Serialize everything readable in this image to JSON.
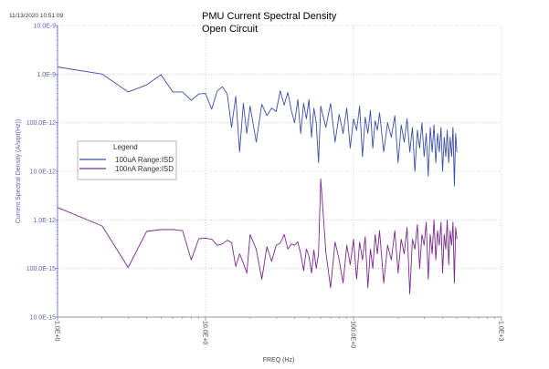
{
  "timestamp": "11/13/2020 10:51:09",
  "chart_data": {
    "type": "line",
    "title": "PMU Current Spectral Density",
    "subtitle": "Open Circuit",
    "xlabel": "FREQ (Hz)",
    "ylabel": "Current Spectral Density (A/sqrt(Hz))",
    "x_scale": "log",
    "y_scale": "log",
    "xlim": [
      1,
      1000
    ],
    "ylim": [
      1e-14,
      1e-08
    ],
    "grid": true,
    "legend_title": "Legend",
    "legend_position": "left-middle",
    "x_ticks": [
      "1.0E+0",
      "10.0E+0",
      "100.0E+0",
      "1.0E+3"
    ],
    "y_ticks": [
      "10.0E-9",
      "1.0E-9",
      "100.0E-12",
      "10.0E-12",
      "1.0E-12",
      "100.0E-15",
      "10.0E-15"
    ],
    "x": [
      1,
      2,
      3,
      4,
      5,
      6,
      7,
      8,
      9,
      10,
      11,
      12,
      13,
      14,
      15,
      16,
      17,
      18,
      19,
      20,
      22,
      24,
      26,
      28,
      30,
      32,
      34,
      36,
      38,
      40,
      42,
      44,
      46,
      48,
      50,
      52,
      54,
      56,
      58,
      60,
      65,
      70,
      75,
      80,
      85,
      90,
      95,
      100,
      105,
      110,
      115,
      120,
      125,
      130,
      135,
      140,
      145,
      150,
      160,
      170,
      180,
      190,
      200,
      210,
      220,
      230,
      240,
      250,
      260,
      270,
      280,
      290,
      300,
      310,
      320,
      330,
      340,
      350,
      360,
      370,
      380,
      390,
      400,
      410,
      420,
      430,
      440,
      450,
      460,
      470,
      480,
      490,
      500
    ],
    "series": [
      {
        "name": "100uA Range:ISD",
        "color": "#3a4fa8",
        "values": [
          1.4e-09,
          1e-09,
          4.3e-10,
          6e-10,
          9.7e-10,
          4.3e-10,
          4.3e-10,
          2.9e-10,
          3.9e-10,
          4e-10,
          1.9e-10,
          4.5e-10,
          5.5e-10,
          3.9e-10,
          8e-11,
          3.5e-10,
          2.5e-11,
          2.5e-10,
          6e-11,
          2.2e-10,
          4e-11,
          2.4e-10,
          1.4e-10,
          2e-10,
          1.7e-10,
          4.5e-10,
          2.3e-10,
          4.2e-10,
          1.8e-10,
          1e-10,
          3e-10,
          6e-11,
          2.5e-10,
          1.2e-10,
          3e-10,
          5e-11,
          2e-10,
          1e-10,
          1.5e-11,
          2.2e-10,
          8e-11,
          2.5e-10,
          4e-11,
          1.5e-10,
          6e-11,
          2e-10,
          3e-11,
          1.2e-10,
          7e-11,
          2.2e-10,
          2e-11,
          1.3e-10,
          6e-11,
          1.8e-10,
          3e-11,
          1.1e-10,
          7e-11,
          1.6e-10,
          2.5e-11,
          1e-10,
          5e-11,
          1.4e-10,
          1.5e-11,
          9e-11,
          4e-11,
          1.2e-10,
          2.5e-11,
          8e-11,
          1e-11,
          7e-11,
          3e-11,
          1e-10,
          2e-11,
          6e-11,
          8e-12,
          8e-11,
          2.5e-11,
          9e-11,
          1.5e-11,
          6e-11,
          2.5e-11,
          8e-11,
          1e-11,
          5e-11,
          2e-11,
          7e-11,
          1.5e-11,
          5e-11,
          2e-11,
          8e-11,
          5e-12,
          6e-11,
          2.5e-11
        ]
      },
      {
        "name": "100nA Range:ISD",
        "color": "#7b2a8c",
        "values": [
          1.8e-12,
          7.5e-13,
          1.05e-13,
          5.8e-13,
          6.3e-13,
          6.3e-13,
          6e-13,
          1.5e-13,
          4.1e-13,
          4.2e-13,
          4e-13,
          3e-13,
          3.2e-13,
          3.8e-13,
          3.4e-13,
          1.1e-13,
          2e-13,
          1.3e-13,
          8e-14,
          5e-13,
          2.5e-13,
          6e-14,
          2.8e-13,
          1.4e-13,
          3e-13,
          3.3e-13,
          5e-13,
          2.5e-13,
          3.2e-13,
          3e-13,
          3.5e-13,
          2e-13,
          9e-14,
          2.5e-13,
          1.8e-13,
          8e-14,
          2.4e-13,
          1e-13,
          2e-13,
          7e-12,
          2.2e-13,
          4e-14,
          3.5e-13,
          1.5e-13,
          5e-14,
          3e-13,
          1.2e-13,
          4e-13,
          6e-14,
          3.5e-13,
          1.5e-13,
          4.5e-13,
          4e-14,
          2.5e-13,
          1e-13,
          5e-13,
          2e-13,
          6e-13,
          5e-14,
          3e-13,
          1.5e-13,
          6e-13,
          8e-14,
          4e-13,
          2e-13,
          7e-13,
          3e-14,
          4e-13,
          2.5e-13,
          8e-13,
          1e-13,
          5e-13,
          3e-13,
          9e-13,
          6e-14,
          5e-13,
          2e-13,
          1e-12,
          1.5e-13,
          6e-13,
          3e-13,
          9e-13,
          8e-14,
          5e-13,
          2.5e-13,
          1e-12,
          1.2e-13,
          6e-13,
          3e-13,
          9e-13,
          5e-14,
          7e-13,
          4e-13
        ]
      }
    ]
  }
}
